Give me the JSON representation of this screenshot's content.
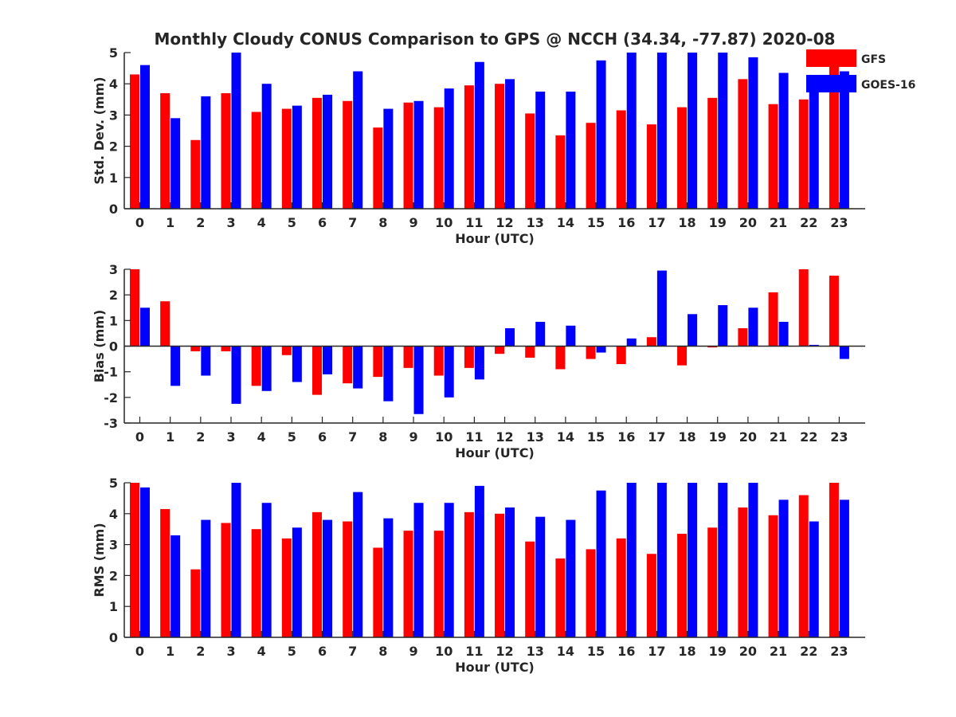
{
  "figure_title": "Monthly Cloudy CONUS Comparison to GPS @ NCCH (34.34, -77.87) 2020-08",
  "chart_data": [
    {
      "type": "bar",
      "id": "stddev",
      "xlabel": "Hour (UTC)",
      "ylabel": "Std. Dev. (mm)",
      "ylim": [
        0,
        5
      ],
      "yticks": [
        0,
        1,
        2,
        3,
        4,
        5
      ],
      "categories": [
        "0",
        "1",
        "2",
        "3",
        "4",
        "5",
        "6",
        "7",
        "8",
        "9",
        "10",
        "11",
        "12",
        "13",
        "14",
        "15",
        "16",
        "17",
        "18",
        "19",
        "20",
        "21",
        "22",
        "23"
      ],
      "series": [
        {
          "name": "GFS",
          "color": "#ff0000",
          "values": [
            4.3,
            3.7,
            2.2,
            3.7,
            3.1,
            3.2,
            3.55,
            3.45,
            2.6,
            3.4,
            3.25,
            3.95,
            4.0,
            3.05,
            2.35,
            2.75,
            3.15,
            2.7,
            3.25,
            3.55,
            4.15,
            3.35,
            3.5,
            4.55
          ]
        },
        {
          "name": "GOES-16",
          "color": "#0000ff",
          "values": [
            4.6,
            2.9,
            3.6,
            5.0,
            4.0,
            3.3,
            3.65,
            4.4,
            3.2,
            3.45,
            3.85,
            4.7,
            4.15,
            3.75,
            3.75,
            4.75,
            5.0,
            5.0,
            5.0,
            5.0,
            4.85,
            4.35,
            3.75,
            4.4
          ]
        }
      ],
      "legend": [
        {
          "name": "GFS",
          "color": "#ff0000"
        },
        {
          "name": "GOES-16",
          "color": "#0000ff"
        }
      ],
      "legend_position": "top-right"
    },
    {
      "type": "bar",
      "id": "bias",
      "xlabel": "Hour (UTC)",
      "ylabel": "Bias (mm)",
      "ylim": [
        -3,
        3
      ],
      "yticks": [
        -3,
        -2,
        -1,
        0,
        1,
        2,
        3
      ],
      "zero_line": true,
      "categories": [
        "0",
        "1",
        "2",
        "3",
        "4",
        "5",
        "6",
        "7",
        "8",
        "9",
        "10",
        "11",
        "12",
        "13",
        "14",
        "15",
        "16",
        "17",
        "18",
        "19",
        "20",
        "21",
        "22",
        "23"
      ],
      "series": [
        {
          "name": "GFS",
          "color": "#ff0000",
          "values": [
            3.0,
            1.75,
            -0.2,
            -0.2,
            -1.55,
            -0.35,
            -1.9,
            -1.45,
            -1.2,
            -0.85,
            -1.15,
            -0.85,
            -0.3,
            -0.45,
            -0.9,
            -0.5,
            -0.7,
            0.35,
            -0.75,
            -0.05,
            0.7,
            2.1,
            3.0,
            2.75
          ]
        },
        {
          "name": "GOES-16",
          "color": "#0000ff",
          "values": [
            1.5,
            -1.55,
            -1.15,
            -2.25,
            -1.75,
            -1.4,
            -1.1,
            -1.65,
            -2.15,
            -2.65,
            -2.0,
            -1.3,
            0.7,
            0.95,
            0.8,
            -0.25,
            0.3,
            2.95,
            1.25,
            1.6,
            1.5,
            0.95,
            0.05,
            -0.5
          ]
        }
      ]
    },
    {
      "type": "bar",
      "id": "rms",
      "xlabel": "Hour (UTC)",
      "ylabel": "RMS (mm)",
      "ylim": [
        0,
        5
      ],
      "yticks": [
        0,
        1,
        2,
        3,
        4,
        5
      ],
      "categories": [
        "0",
        "1",
        "2",
        "3",
        "4",
        "5",
        "6",
        "7",
        "8",
        "9",
        "10",
        "11",
        "12",
        "13",
        "14",
        "15",
        "16",
        "17",
        "18",
        "19",
        "20",
        "21",
        "22",
        "23"
      ],
      "series": [
        {
          "name": "GFS",
          "color": "#ff0000",
          "values": [
            5.0,
            4.15,
            2.2,
            3.7,
            3.5,
            3.2,
            4.05,
            3.75,
            2.9,
            3.45,
            3.45,
            4.05,
            4.0,
            3.1,
            2.55,
            2.85,
            3.2,
            2.7,
            3.35,
            3.55,
            4.2,
            3.95,
            4.6,
            5.0
          ]
        },
        {
          "name": "GOES-16",
          "color": "#0000ff",
          "values": [
            4.85,
            3.3,
            3.8,
            5.0,
            4.35,
            3.55,
            3.8,
            4.7,
            3.85,
            4.35,
            4.35,
            4.9,
            4.2,
            3.9,
            3.8,
            4.75,
            5.0,
            5.0,
            5.0,
            5.0,
            5.0,
            4.45,
            3.75,
            4.45
          ]
        }
      ]
    }
  ]
}
